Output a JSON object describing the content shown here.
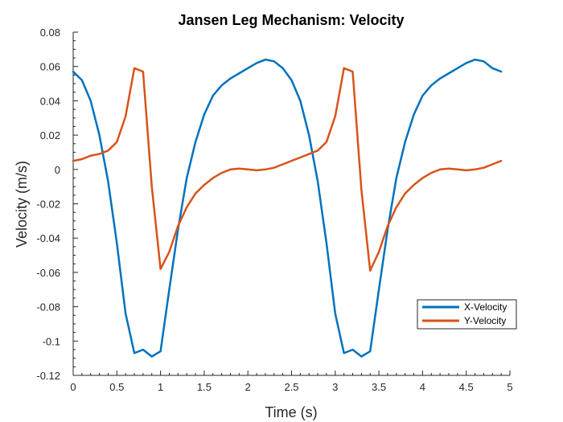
{
  "chart_data": {
    "type": "line",
    "title": "Jansen Leg Mechanism: Velocity",
    "xlabel": "Time (s)",
    "ylabel": "Velocity (m/s)",
    "xlim": [
      0,
      5
    ],
    "ylim": [
      -0.12,
      0.08
    ],
    "xticks": [
      0,
      0.5,
      1,
      1.5,
      2,
      2.5,
      3,
      3.5,
      4,
      4.5,
      5
    ],
    "xtick_labels": [
      "0",
      "0.5",
      "1",
      "1.5",
      "2",
      "2.5",
      "3",
      "3.5",
      "4",
      "4.5",
      "5"
    ],
    "yticks": [
      -0.12,
      -0.1,
      -0.08,
      -0.06,
      -0.04,
      -0.02,
      0,
      0.02,
      0.04,
      0.06,
      0.08
    ],
    "ytick_labels": [
      "-0.12",
      "-0.1",
      "-0.08",
      "-0.06",
      "-0.04",
      "-0.02",
      "0",
      "0.02",
      "0.04",
      "0.06",
      "0.08"
    ],
    "grid": false,
    "legend_position": "bottom-right",
    "series": [
      {
        "name": "X-Velocity",
        "color": "#0072BD",
        "points": [
          [
            0,
            0.057
          ],
          [
            0.1,
            0.052
          ],
          [
            0.2,
            0.04
          ],
          [
            0.3,
            0.02
          ],
          [
            0.4,
            -0.007
          ],
          [
            0.5,
            -0.043
          ],
          [
            0.6,
            -0.084
          ],
          [
            0.7,
            -0.107
          ],
          [
            0.8,
            -0.105
          ],
          [
            0.9,
            -0.109
          ],
          [
            1.0,
            -0.106
          ],
          [
            1.1,
            -0.07
          ],
          [
            1.2,
            -0.035
          ],
          [
            1.3,
            -0.005
          ],
          [
            1.4,
            0.016
          ],
          [
            1.5,
            0.032
          ],
          [
            1.6,
            0.043
          ],
          [
            1.7,
            0.049
          ],
          [
            1.8,
            0.053
          ],
          [
            1.9,
            0.056
          ],
          [
            2.0,
            0.059
          ],
          [
            2.1,
            0.062
          ],
          [
            2.2,
            0.064
          ],
          [
            2.3,
            0.063
          ],
          [
            2.4,
            0.059
          ],
          [
            2.5,
            0.052
          ],
          [
            2.6,
            0.04
          ],
          [
            2.7,
            0.02
          ],
          [
            2.8,
            -0.007
          ],
          [
            2.9,
            -0.043
          ],
          [
            3.0,
            -0.084
          ],
          [
            3.1,
            -0.107
          ],
          [
            3.2,
            -0.105
          ],
          [
            3.3,
            -0.109
          ],
          [
            3.4,
            -0.106
          ],
          [
            3.5,
            -0.07
          ],
          [
            3.6,
            -0.035
          ],
          [
            3.7,
            -0.005
          ],
          [
            3.8,
            0.016
          ],
          [
            3.9,
            0.032
          ],
          [
            4.0,
            0.043
          ],
          [
            4.1,
            0.049
          ],
          [
            4.2,
            0.053
          ],
          [
            4.3,
            0.056
          ],
          [
            4.4,
            0.059
          ],
          [
            4.5,
            0.062
          ],
          [
            4.6,
            0.064
          ],
          [
            4.7,
            0.063
          ],
          [
            4.8,
            0.059
          ],
          [
            4.9,
            0.057
          ]
        ]
      },
      {
        "name": "Y-Velocity",
        "color": "#D95319",
        "points": [
          [
            0,
            0.005
          ],
          [
            0.1,
            0.006
          ],
          [
            0.2,
            0.008
          ],
          [
            0.3,
            0.009
          ],
          [
            0.4,
            0.011
          ],
          [
            0.5,
            0.016
          ],
          [
            0.6,
            0.031
          ],
          [
            0.7,
            0.059
          ],
          [
            0.8,
            0.057
          ],
          [
            0.9,
            -0.01
          ],
          [
            1.0,
            -0.058
          ],
          [
            1.1,
            -0.048
          ],
          [
            1.2,
            -0.033
          ],
          [
            1.3,
            -0.022
          ],
          [
            1.4,
            -0.014
          ],
          [
            1.5,
            -0.009
          ],
          [
            1.6,
            -0.005
          ],
          [
            1.7,
            -0.002
          ],
          [
            1.8,
            0
          ],
          [
            1.9,
            0.0005
          ],
          [
            2.0,
            0
          ],
          [
            2.1,
            -0.0005
          ],
          [
            2.2,
            0
          ],
          [
            2.3,
            0.001
          ],
          [
            2.4,
            0.003
          ],
          [
            2.5,
            0.005
          ],
          [
            2.6,
            0.007
          ],
          [
            2.7,
            0.009
          ],
          [
            2.8,
            0.011
          ],
          [
            2.9,
            0.016
          ],
          [
            3.0,
            0.031
          ],
          [
            3.1,
            0.059
          ],
          [
            3.2,
            0.057
          ],
          [
            3.3,
            -0.012
          ],
          [
            3.4,
            -0.059
          ],
          [
            3.5,
            -0.048
          ],
          [
            3.6,
            -0.033
          ],
          [
            3.7,
            -0.022
          ],
          [
            3.8,
            -0.014
          ],
          [
            3.9,
            -0.009
          ],
          [
            4.0,
            -0.005
          ],
          [
            4.1,
            -0.002
          ],
          [
            4.2,
            0
          ],
          [
            4.3,
            0.0005
          ],
          [
            4.4,
            0
          ],
          [
            4.5,
            -0.0005
          ],
          [
            4.6,
            0
          ],
          [
            4.7,
            0.001
          ],
          [
            4.8,
            0.003
          ],
          [
            4.9,
            0.005
          ]
        ]
      }
    ]
  }
}
